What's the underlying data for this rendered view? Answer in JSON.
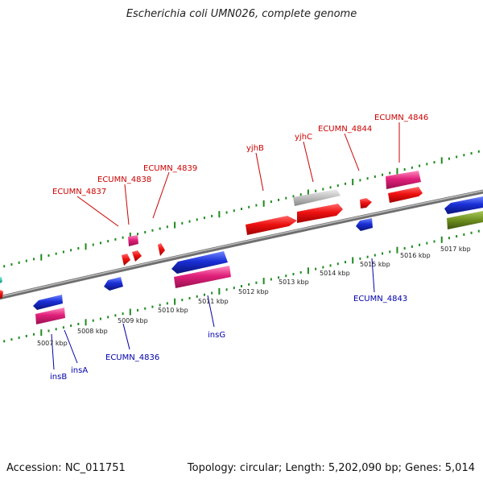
{
  "title": "Escherichia coli UMN026, complete genome",
  "footer": {
    "accession": "Accession: NC_011751",
    "summary": "Topology: circular; Length: 5,202,090 bp; Genes: 5,014"
  },
  "colors": {
    "background": "#ffffff",
    "backbone": "#8a8a8a",
    "tick_dots": "#1f8a1f",
    "forward_label": "#cc0000",
    "reverse_label": "#0000aa",
    "feature_red": "#ee1111",
    "feature_blue": "#1a2fd6",
    "feature_pink": "#e0207a",
    "feature_grey": "#b8b8b8",
    "feature_olive": "#6e8f1e",
    "feature_teal": "#18b8a8"
  },
  "scale_labels": [
    "5007 kbp",
    "5008 kbp",
    "5009 kbp",
    "5010 kbp",
    "5011 kbp",
    "5012 kbp",
    "5013 kbp",
    "5014 kbp",
    "5015 kbp",
    "5016 kbp",
    "5017 kbp"
  ],
  "forward_gene_labels": [
    "ECUMN_4837",
    "ECUMN_4838",
    "ECUMN_4839",
    "yjhB",
    "yjhC",
    "ECUMN_4844",
    "ECUMN_4846"
  ],
  "reverse_gene_labels": [
    "insB",
    "insA",
    "ECUMN_4836",
    "insG",
    "ECUMN_4843"
  ]
}
